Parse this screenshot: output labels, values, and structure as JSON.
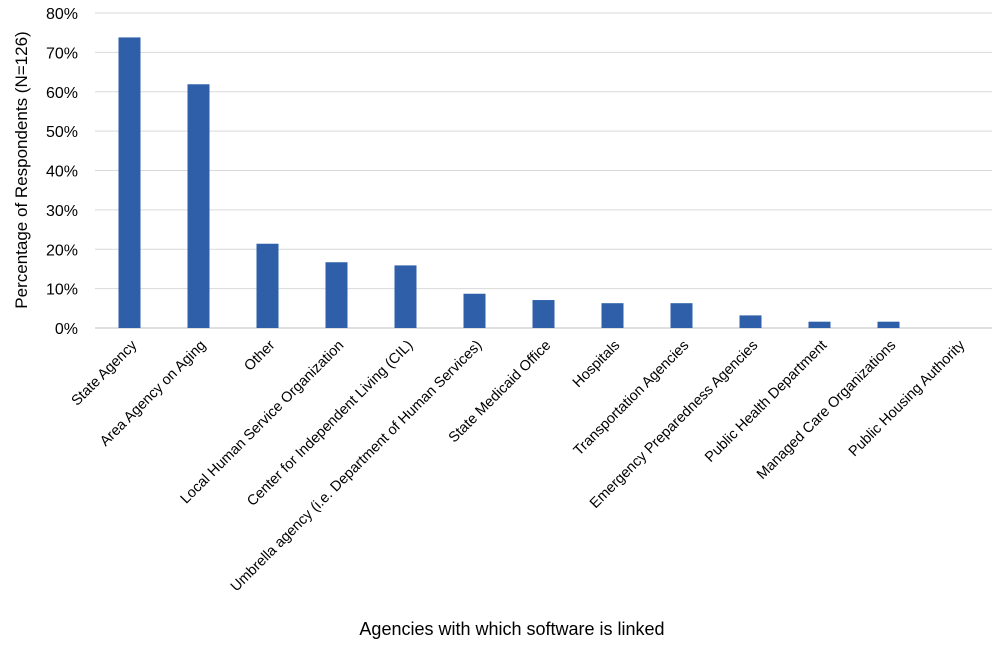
{
  "chart_data": {
    "type": "bar",
    "title": "",
    "xlabel": "Agencies with which software is linked",
    "ylabel": "Percentage of Respondents (N=126)",
    "ylim": [
      0,
      80
    ],
    "yticks": [
      "0%",
      "10%",
      "20%",
      "30%",
      "40%",
      "50%",
      "60%",
      "70%",
      "80%"
    ],
    "grid": true,
    "legend": "none",
    "categories": [
      "State Agency",
      "Area Agency on Aging",
      "Other",
      "Local Human Service Organization",
      "Center for Independent Living (CIL)",
      "Umbrella agency (i.e. Department of Human Services)",
      "State Medicaid Office",
      "Hospitals",
      "Transportation Agencies",
      "Emergency Preparedness Agencies",
      "Public Health Department",
      "Managed Care Organizations",
      "Public Housing Authority"
    ],
    "values": [
      73.8,
      61.9,
      21.4,
      16.7,
      15.9,
      8.7,
      7.1,
      6.3,
      6.3,
      3.2,
      1.6,
      1.6,
      0
    ],
    "colors": {
      "bar": "#2e5fa8",
      "grid": "#d9d9d9"
    }
  }
}
